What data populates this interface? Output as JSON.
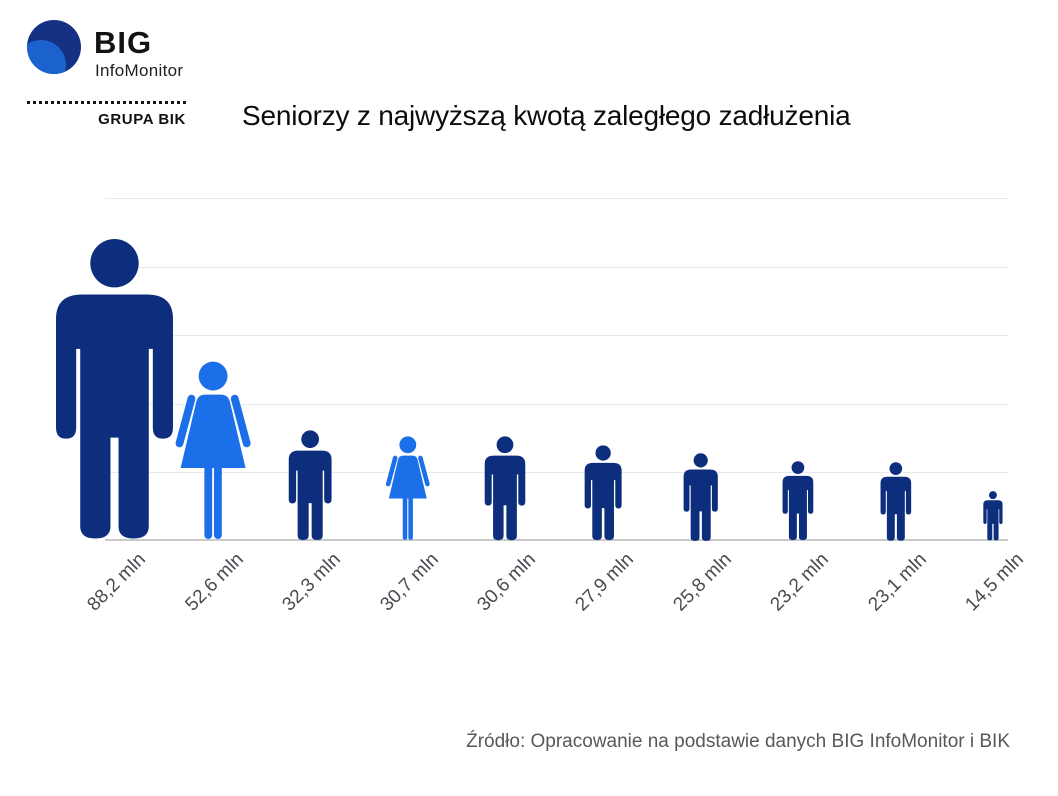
{
  "logo": {
    "big_label": "BIG",
    "infomonitor_label": "InfoMonitor",
    "grupa_bik_label": "GRUPA BIK",
    "circle_navy": "#143184",
    "circle_blue": "#1b62cf"
  },
  "title": "Seniorzy z najwyższą kwotą zaległego zadłużenia",
  "source": "Źródło: Opracowanie na podstawie danych BIG InfoMonitor i BIK",
  "colors": {
    "figure_dark": "#0d2e7d",
    "figure_light": "#1b6fe8",
    "gridline": "#e9e9e9",
    "baseline": "#c9c9c9",
    "label_gray": "#4a4a52",
    "source_gray": "#58585a"
  },
  "chart_data": {
    "type": "pictogram-bar",
    "title": "Seniorzy z najwyższą kwotą zaległego zadłużenia",
    "unit": "mln",
    "ylim": [
      0,
      100
    ],
    "gridline_step": 20,
    "grid": true,
    "legend": "none",
    "points": [
      {
        "label": "88,2 mln",
        "value": 88.2,
        "icon": "male",
        "color": "dark"
      },
      {
        "label": "52,6 mln",
        "value": 52.6,
        "icon": "female",
        "color": "light"
      },
      {
        "label": "32,3 mln",
        "value": 32.3,
        "icon": "male",
        "color": "dark"
      },
      {
        "label": "30,7 mln",
        "value": 30.7,
        "icon": "female",
        "color": "light"
      },
      {
        "label": "30,6 mln",
        "value": 30.6,
        "icon": "male",
        "color": "dark"
      },
      {
        "label": "27,9 mln",
        "value": 27.9,
        "icon": "male",
        "color": "dark"
      },
      {
        "label": "25,8 mln",
        "value": 25.8,
        "icon": "male",
        "color": "dark"
      },
      {
        "label": "23,2 mln",
        "value": 23.2,
        "icon": "male",
        "color": "dark"
      },
      {
        "label": "23,1 mln",
        "value": 23.1,
        "icon": "male",
        "color": "dark"
      },
      {
        "label": "14,5 mln",
        "value": 14.5,
        "icon": "male",
        "color": "dark"
      }
    ]
  }
}
